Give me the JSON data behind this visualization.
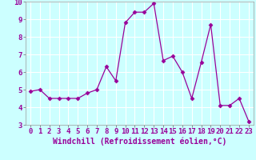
{
  "x": [
    0,
    1,
    2,
    3,
    4,
    5,
    6,
    7,
    8,
    9,
    10,
    11,
    12,
    13,
    14,
    15,
    16,
    17,
    18,
    19,
    20,
    21,
    22,
    23
  ],
  "y": [
    4.9,
    5.0,
    4.5,
    4.5,
    4.5,
    4.5,
    4.8,
    5.0,
    6.3,
    5.5,
    8.8,
    9.4,
    9.4,
    9.9,
    6.65,
    6.9,
    6.0,
    4.5,
    6.55,
    8.7,
    4.1,
    4.1,
    4.5,
    3.2
  ],
  "line_color": "#990099",
  "marker": "D",
  "marker_size": 2.5,
  "bg_color": "#ccffff",
  "grid_color": "#ffffff",
  "xlabel": "Windchill (Refroidissement éolien,°C)",
  "xlabel_fontsize": 7,
  "tick_fontsize": 6.5,
  "ylim": [
    3,
    10
  ],
  "xlim": [
    -0.5,
    23.5
  ],
  "yticks": [
    3,
    4,
    5,
    6,
    7,
    8,
    9,
    10
  ],
  "xticks": [
    0,
    1,
    2,
    3,
    4,
    5,
    6,
    7,
    8,
    9,
    10,
    11,
    12,
    13,
    14,
    15,
    16,
    17,
    18,
    19,
    20,
    21,
    22,
    23
  ]
}
